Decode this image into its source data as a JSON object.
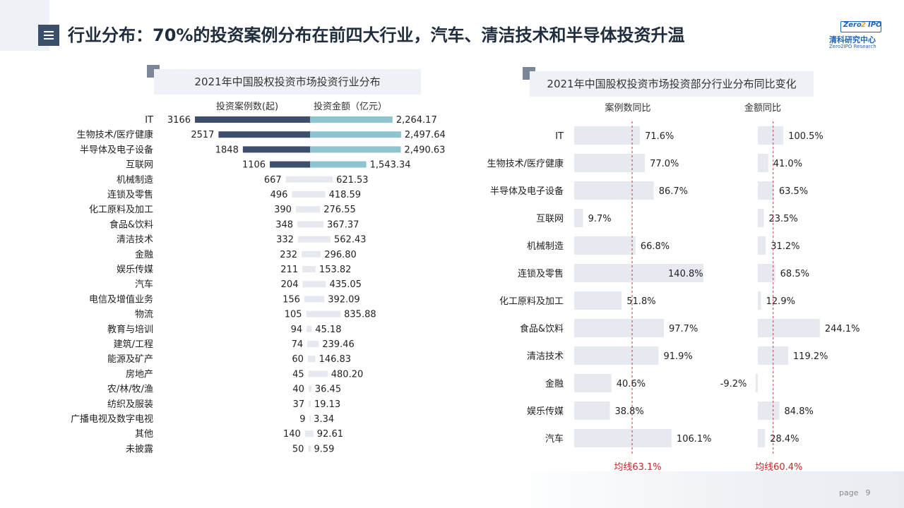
{
  "page": {
    "title": "行业分布：70%的投资案例分布在前四大行业，汽车、清洁技术和半导体投资升温",
    "page_label": "page",
    "page_number": "9"
  },
  "logo": {
    "top": "Zero",
    "badge": "2",
    "ipo": "IPO",
    "cn": "清科研究中心",
    "en": "Zero2IPO Research"
  },
  "colors": {
    "cases_top": "#3d4f6c",
    "amount_top": "#8ec3d0",
    "bar_light": "#e6e9ef",
    "avg_line": "#c23a3a",
    "avg_text": "#c0292b"
  },
  "chart_data": [
    {
      "type": "bar",
      "title": "2021年中国股权投资市场投资行业分布",
      "cases_label": "投资案例数(起)",
      "amount_label": "投资金额（亿元）",
      "categories": [
        "IT",
        "生物技术/医疗健康",
        "半导体及电子设备",
        "互联网",
        "机械制造",
        "连锁及零售",
        "化工原料及加工",
        "食品&饮料",
        "清洁技术",
        "金融",
        "娱乐传媒",
        "汽车",
        "电信及增值业务",
        "物流",
        "教育与培训",
        "建筑/工程",
        "能源及矿产",
        "房地产",
        "农/林/牧/渔",
        "纺织及服装",
        "广播电视及数字电视",
        "其他",
        "未披露"
      ],
      "series": [
        {
          "name": "投资案例数(起)",
          "values": [
            3166,
            2517,
            1848,
            1106,
            667,
            496,
            390,
            348,
            332,
            232,
            211,
            204,
            156,
            105,
            94,
            74,
            60,
            45,
            40,
            37,
            9,
            140,
            50
          ],
          "labels": [
            "3166",
            "2517",
            "1848",
            "1106",
            "667",
            "496",
            "390",
            "348",
            "332",
            "232",
            "211",
            "204",
            "156",
            "105",
            "94",
            "74",
            "60",
            "45",
            "40",
            "37",
            "9",
            "140",
            "50"
          ]
        },
        {
          "name": "投资金额（亿元）",
          "values": [
            2264.17,
            2497.64,
            2490.63,
            1543.34,
            621.53,
            418.59,
            276.55,
            367.37,
            562.43,
            296.8,
            153.82,
            435.05,
            392.09,
            835.88,
            45.18,
            239.46,
            146.83,
            480.2,
            36.45,
            19.13,
            3.34,
            92.61,
            9.59
          ],
          "labels": [
            "2,264.17",
            "2,497.64",
            "2,490.63",
            "1,543.34",
            "621.53",
            "418.59",
            "276.55",
            "367.37",
            "562.43",
            "296.80",
            "153.82",
            "435.05",
            "392.09",
            "835.88",
            "45.18",
            "239.46",
            "146.83",
            "480.20",
            "36.45",
            "19.13",
            "3.34",
            "92.61",
            "9.59"
          ]
        }
      ]
    },
    {
      "type": "bar",
      "title": "2021年中国股权投资市场投资部分行业分布同比变化",
      "categories": [
        "IT",
        "生物技术/医疗健康",
        "半导体及电子设备",
        "互联网",
        "机械制造",
        "连锁及零售",
        "化工原料及加工",
        "食品&饮料",
        "清洁技术",
        "金融",
        "娱乐传媒",
        "汽车"
      ],
      "series": [
        {
          "name": "案例数同比",
          "values": [
            71.6,
            77.0,
            86.7,
            9.7,
            66.8,
            140.8,
            51.8,
            97.7,
            91.9,
            40.6,
            38.8,
            106.1
          ],
          "labels": [
            "71.6%",
            "77.0%",
            "86.7%",
            "9.7%",
            "66.8%",
            "140.8%",
            "51.8%",
            "97.7%",
            "91.9%",
            "40.6%",
            "38.8%",
            "106.1%"
          ],
          "average": 63.1,
          "average_label": "均线63.1%"
        },
        {
          "name": "金额同比",
          "values": [
            100.5,
            41.0,
            63.5,
            23.5,
            31.2,
            68.5,
            12.9,
            244.1,
            119.2,
            -9.2,
            84.8,
            28.4
          ],
          "labels": [
            "100.5%",
            "41.0%",
            "63.5%",
            "23.5%",
            "31.2%",
            "68.5%",
            "12.9%",
            "244.1%",
            "119.2%",
            "-9.2%",
            "84.8%",
            "28.4%"
          ],
          "average": 60.4,
          "average_label": "均线60.4%"
        }
      ]
    }
  ]
}
